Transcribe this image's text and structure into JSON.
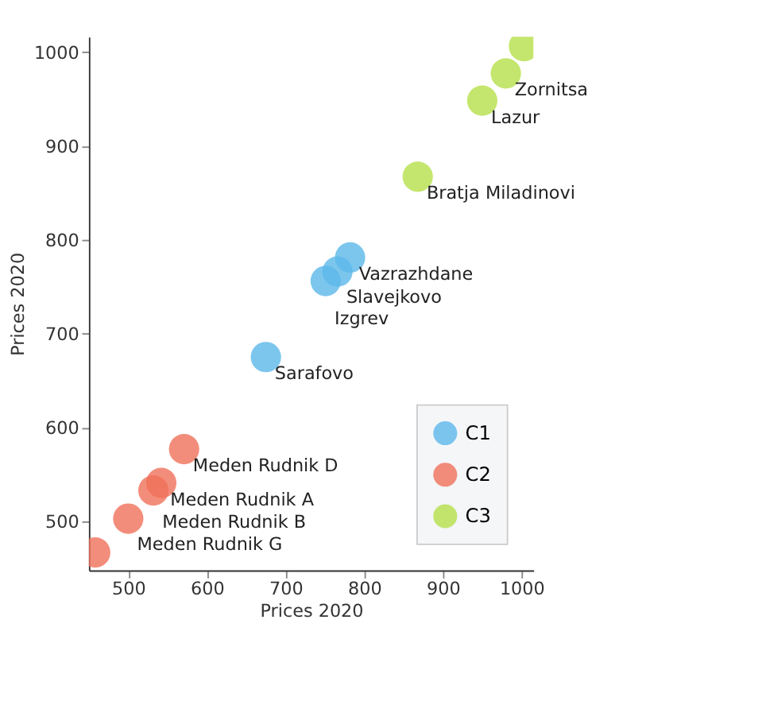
{
  "chart_data": {
    "type": "scatter",
    "xlabel": "Prices 2020",
    "ylabel": "Prices 2020",
    "xlim": [
      450,
      1015
    ],
    "ylim": [
      448,
      1016
    ],
    "xticks": [
      500,
      600,
      700,
      800,
      900,
      1000
    ],
    "yticks": [
      500,
      600,
      700,
      800,
      900,
      1000
    ],
    "grid": false,
    "legend": "bottom right",
    "marker": "circle",
    "series": [
      {
        "name": "C1",
        "color": "#5bb8ea",
        "x": [
          782,
          766,
          751,
          675
        ],
        "values": [
          781,
          766,
          756,
          675
        ]
      },
      {
        "name": "C2",
        "color": "#f0705a",
        "x": [
          571,
          542,
          532,
          500,
          458
        ],
        "values": [
          577,
          541,
          533,
          503,
          467
        ]
      },
      {
        "name": "C3",
        "color": "#b5e04a",
        "x": [
          1003,
          980,
          950,
          868
        ],
        "values": [
          1006,
          977,
          948,
          867
        ]
      }
    ],
    "annotations": [
      {
        "text": "Vazrazhdane",
        "x": 782,
        "y": 781
      },
      {
        "text": "Slavejkovo",
        "x": 766,
        "y": 766
      },
      {
        "text": "Izgrev",
        "x": 751,
        "y": 756
      },
      {
        "text": "Sarafovo",
        "x": 675,
        "y": 675
      },
      {
        "text": "Meden Rudnik D",
        "x": 571,
        "y": 577
      },
      {
        "text": "Meden Rudnik A",
        "x": 542,
        "y": 541
      },
      {
        "text": "Meden Rudnik B",
        "x": 532,
        "y": 533
      },
      {
        "text": "Meden Rudnik G",
        "x": 500,
        "y": 503
      },
      {
        "text": "Zornitsa",
        "x": 980,
        "y": 977
      },
      {
        "text": "Lazur",
        "x": 950,
        "y": 948
      },
      {
        "text": "Bratja Miladinovi",
        "x": 868,
        "y": 867
      }
    ]
  }
}
